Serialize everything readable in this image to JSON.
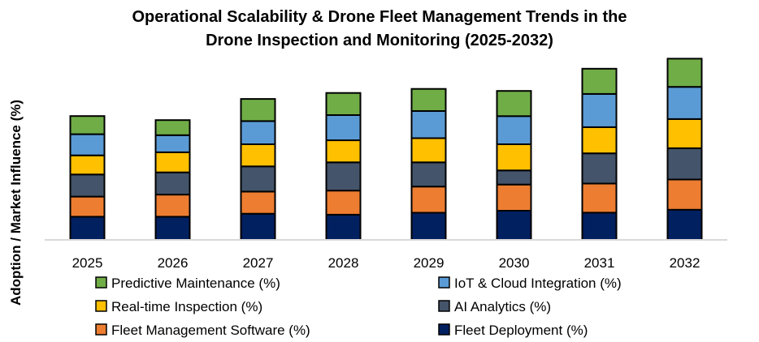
{
  "chart_data": {
    "type": "bar",
    "stacked": true,
    "title": "Operational Scalability & Drone Fleet Management Trends in the Drone Inspection and Monitoring (2025-2032)",
    "title_lines": [
      "Operational Scalability & Drone Fleet Management Trends in the",
      "Drone Inspection and Monitoring (2025-2032)"
    ],
    "xlabel": "",
    "ylabel": "Adoption / Market Influence (%)",
    "categories": [
      "2025",
      "2026",
      "2027",
      "2028",
      "2029",
      "2030",
      "2031",
      "2032"
    ],
    "ylim": [
      0,
      95
    ],
    "grid": false,
    "y_tick_labels_shown": false,
    "legend_position": "bottom",
    "series": [
      {
        "name": "Fleet Deployment (%)",
        "color": "#002060",
        "values": [
          11.5,
          11.5,
          13,
          12.5,
          13.5,
          14.5,
          13.5,
          15
        ]
      },
      {
        "name": "Fleet Management Software (%)",
        "color": "#ED7D31",
        "values": [
          10,
          11,
          11,
          12,
          13,
          13,
          14.5,
          15
        ]
      },
      {
        "name": "AI Analytics (%)",
        "color": "#44546A",
        "values": [
          11,
          11,
          12.5,
          14,
          12,
          7,
          15,
          15.5
        ]
      },
      {
        "name": "Real-time Inspection (%)",
        "color": "#FFC000",
        "values": [
          9.5,
          10,
          11,
          11,
          12,
          13,
          13,
          14.5
        ]
      },
      {
        "name": "IoT & Cloud Integration (%)",
        "color": "#5B9BD5",
        "values": [
          10.5,
          8.5,
          11.5,
          12.5,
          13.5,
          14,
          16.5,
          16
        ]
      },
      {
        "name": "Predictive Maintenance (%)",
        "color": "#70AD47",
        "values": [
          9,
          7.5,
          11,
          11,
          11,
          12.5,
          12.5,
          14
        ]
      }
    ],
    "legend_order": [
      "Predictive Maintenance (%)",
      "IoT & Cloud Integration (%)",
      "Real-time Inspection (%)",
      "AI Analytics (%)",
      "Fleet Management Software (%)",
      "Fleet Deployment (%)"
    ]
  }
}
